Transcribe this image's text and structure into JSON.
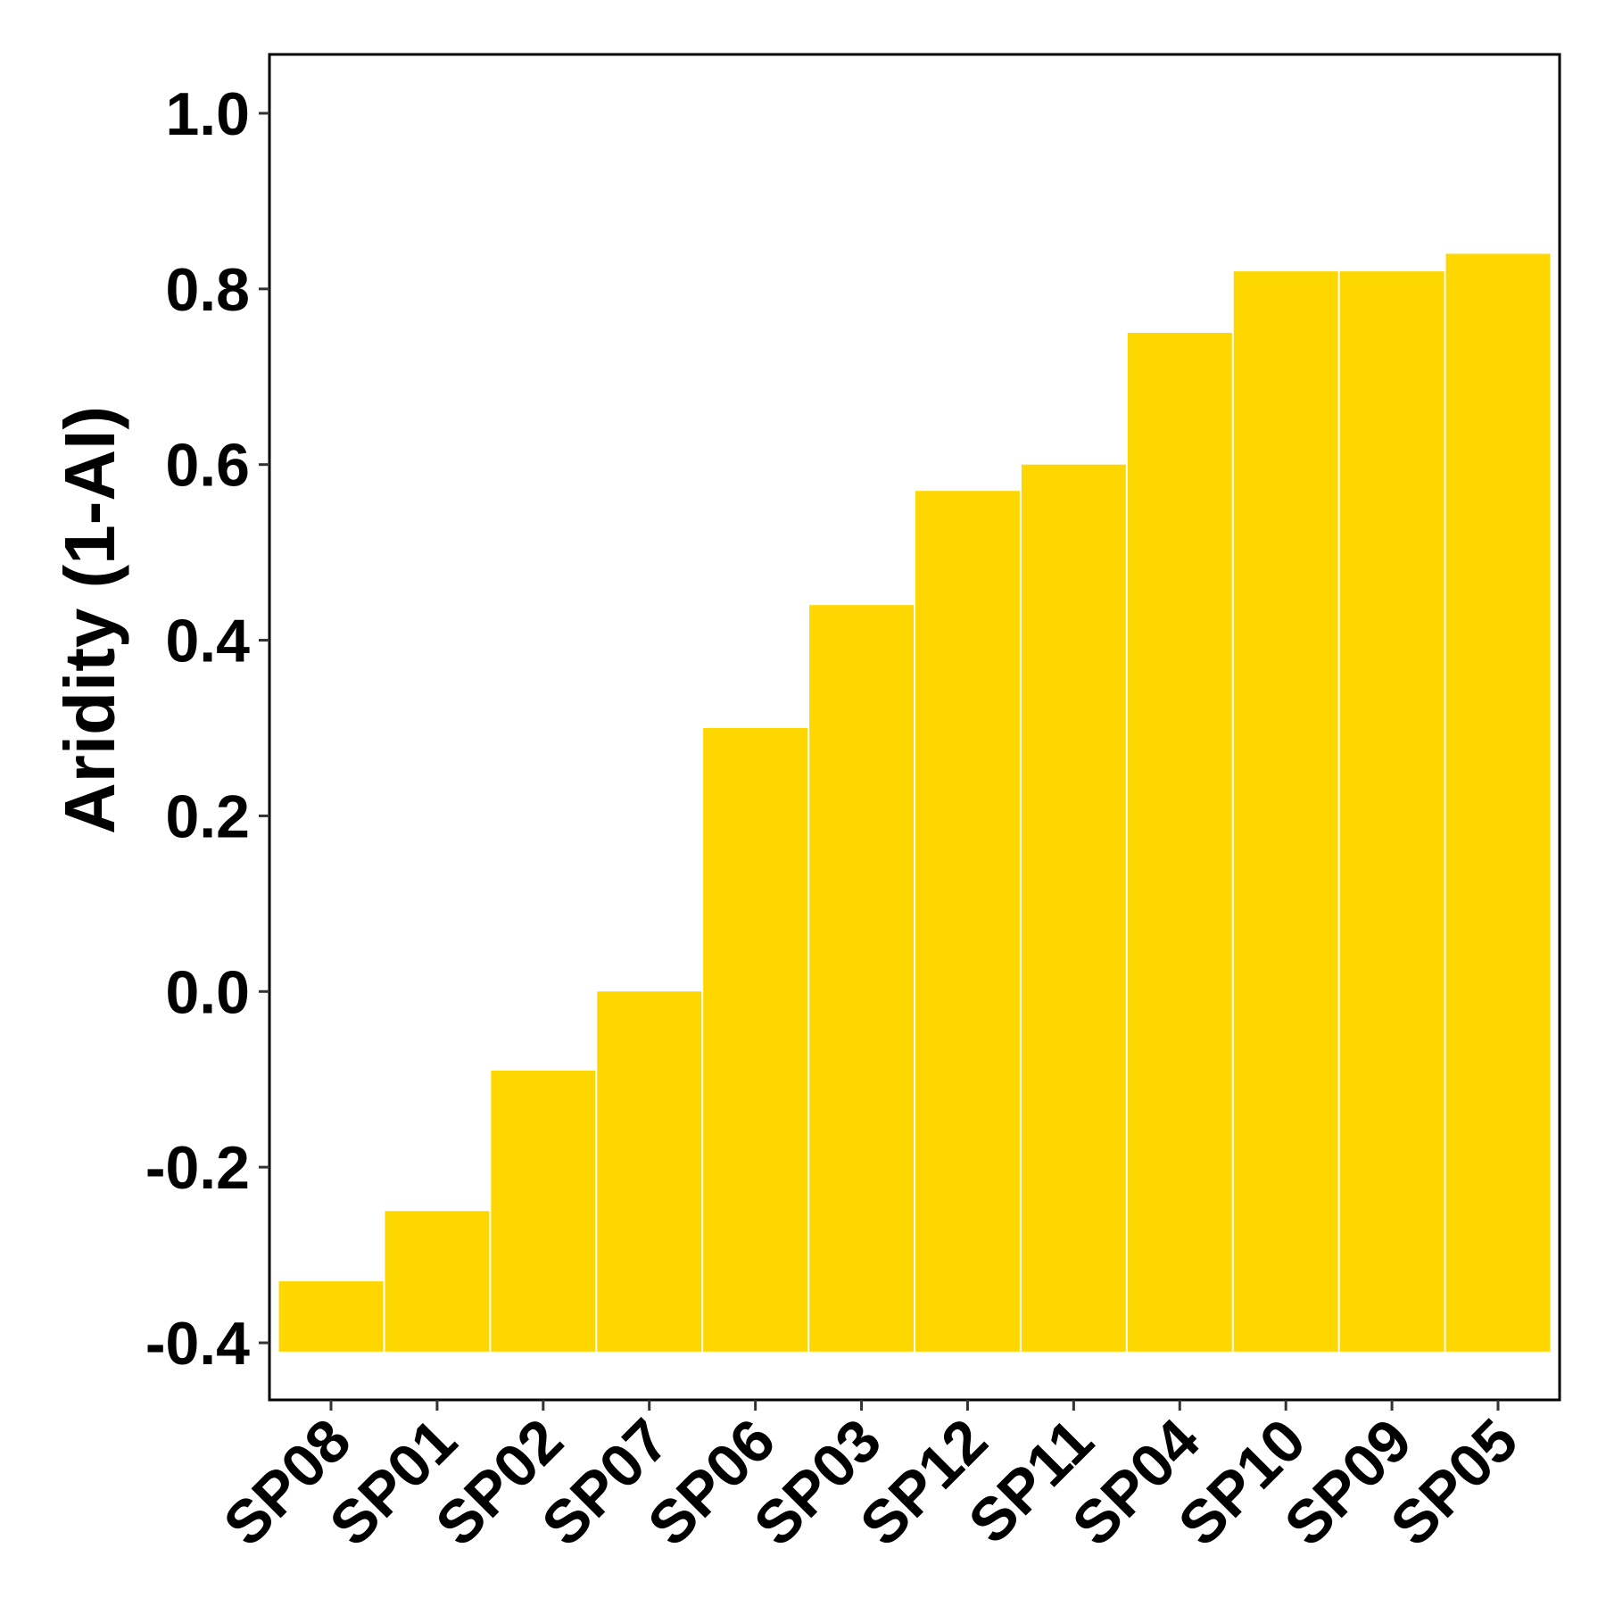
{
  "chart_data": {
    "type": "bar",
    "title": "",
    "xlabel": "",
    "ylabel": "Aridity (1-AI)",
    "categories": [
      "SP08",
      "SP01",
      "SP02",
      "SP07",
      "SP06",
      "SP03",
      "SP12",
      "SP11",
      "SP04",
      "SP10",
      "SP09",
      "SP05"
    ],
    "values": [
      -0.33,
      -0.25,
      -0.09,
      0.0,
      0.3,
      0.44,
      0.57,
      0.6,
      0.75,
      0.82,
      0.82,
      0.84
    ],
    "baseline": -0.41,
    "ylim": [
      -0.465,
      1.067
    ],
    "yticks": [
      -0.4,
      -0.2,
      0.0,
      0.2,
      0.4,
      0.6,
      0.8,
      1.0
    ],
    "ytick_labels": [
      "-0.4",
      "-0.2",
      "0.0",
      "0.2",
      "0.4",
      "0.6",
      "0.8",
      "1.0"
    ],
    "bar_color": "#FFD700",
    "grid": false,
    "legend": "none"
  }
}
